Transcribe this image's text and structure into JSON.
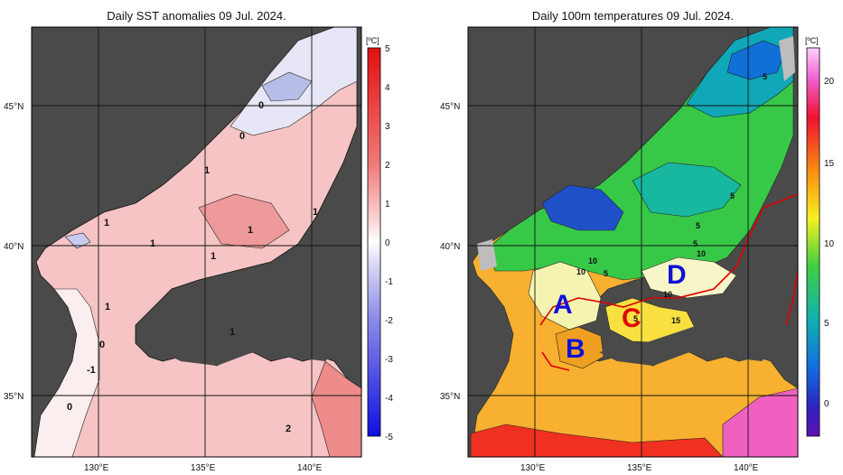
{
  "left_panel": {
    "title": "Daily SST anomalies 09 Jul. 2024.",
    "unit": "[ºC]",
    "lat_labels": [
      "45°N",
      "40°N",
      "35°N"
    ],
    "lon_labels": [
      "130°E",
      "135°E",
      "140°E"
    ],
    "colorbar_ticks": [
      "5",
      "4",
      "3",
      "2",
      "1",
      "0",
      "-1",
      "-2",
      "-3",
      "-4",
      "-5"
    ],
    "contour_labels": [
      "0",
      "0",
      "1",
      "1",
      "1",
      "1",
      "1",
      "1",
      "1",
      "1",
      "0",
      "-1",
      "0",
      "2"
    ]
  },
  "right_panel": {
    "title": "Daily 100m temperatures 09 Jul. 2024.",
    "unit": "[ºC]",
    "lat_labels": [
      "45°N",
      "40°N",
      "35°N"
    ],
    "lon_labels": [
      "130°E",
      "135°E",
      "140°E"
    ],
    "colorbar_ticks": [
      "20",
      "15",
      "10",
      "5",
      "0"
    ],
    "contour_labels": [
      "5",
      "5",
      "5",
      "5",
      "10",
      "10",
      "5",
      "10",
      "10",
      "5",
      "15"
    ],
    "region_labels": [
      "A",
      "B",
      "C",
      "D"
    ]
  },
  "colors": {
    "land": "#4a4a4a",
    "shelf": "#bdbdbd",
    "anomaly_warm": "#f2a8a8",
    "anomaly_cold": "#b8bde8",
    "region_label": "#1010d8",
    "front_line": "#e00000"
  }
}
